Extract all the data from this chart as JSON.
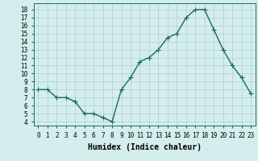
{
  "x": [
    0,
    1,
    2,
    3,
    4,
    5,
    6,
    7,
    8,
    9,
    10,
    11,
    12,
    13,
    14,
    15,
    16,
    17,
    18,
    19,
    20,
    21,
    22,
    23
  ],
  "y": [
    8,
    8,
    7,
    7,
    6.5,
    5,
    5,
    4.5,
    4,
    8,
    9.5,
    11.5,
    12,
    13,
    14.5,
    15,
    17,
    18,
    18,
    15.5,
    13,
    11,
    9.5,
    7.5
  ],
  "line_color": "#1a6b5a",
  "marker": "+",
  "marker_size": 4,
  "bg_color": "#d4eded",
  "grid_color": "#b0cece",
  "xlabel": "Humidex (Indice chaleur)",
  "ylabel_ticks": [
    4,
    5,
    6,
    7,
    8,
    9,
    10,
    11,
    12,
    13,
    14,
    15,
    16,
    17,
    18
  ],
  "ylim": [
    3.5,
    18.8
  ],
  "xlim": [
    -0.5,
    23.5
  ],
  "xticks": [
    0,
    1,
    2,
    3,
    4,
    5,
    6,
    7,
    8,
    9,
    10,
    11,
    12,
    13,
    14,
    15,
    16,
    17,
    18,
    19,
    20,
    21,
    22,
    23
  ],
  "tick_fontsize": 5.5,
  "xlabel_fontsize": 7,
  "line_width": 1.0,
  "marker_edge_width": 0.8
}
